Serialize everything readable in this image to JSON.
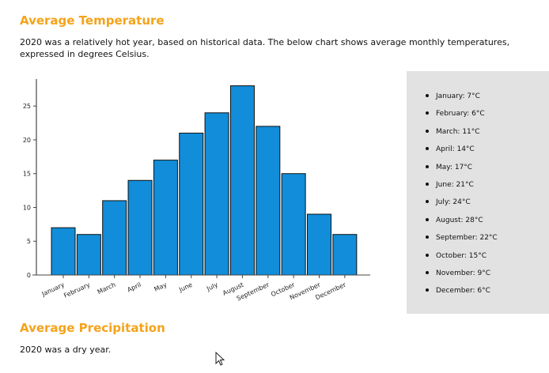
{
  "section1": {
    "title": "Average Temperature",
    "description": "2020 was a relatively hot year, based on historical data. The below chart shows average monthly temperatures, expressed in degrees Celsius."
  },
  "chart_data": {
    "type": "bar",
    "title": "",
    "xlabel": "",
    "ylabel": "",
    "categories": [
      "January",
      "February",
      "March",
      "April",
      "May",
      "June",
      "July",
      "August",
      "September",
      "October",
      "November",
      "December"
    ],
    "values": [
      7,
      6,
      11,
      14,
      17,
      21,
      24,
      28,
      22,
      15,
      9,
      6
    ],
    "yticks": [
      0,
      5,
      10,
      15,
      20,
      25
    ],
    "ylim": [
      0,
      29
    ],
    "grid": false,
    "bar_color": "#118dd9"
  },
  "list": {
    "items": [
      "January: 7°C",
      "February: 6°C",
      "March: 11°C",
      "April: 14°C",
      "May: 17°C",
      "June: 21°C",
      "July: 24°C",
      "August: 28°C",
      "September: 22°C",
      "October: 15°C",
      "November: 9°C",
      "December: 6°C"
    ]
  },
  "section2": {
    "title": "Average Precipitation",
    "description": "2020 was a dry year."
  },
  "colors": {
    "heading": "#f5a31a",
    "panel": "#e3e2e2"
  }
}
